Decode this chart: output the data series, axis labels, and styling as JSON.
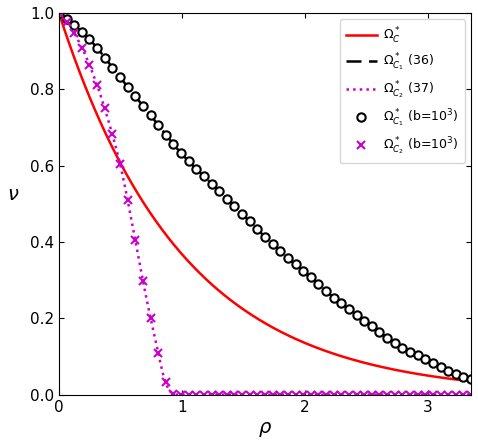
{
  "xlim": [
    0,
    3.35
  ],
  "ylim": [
    0,
    1.0
  ],
  "xlabel": "$\\rho$",
  "ylabel": "$\\nu$",
  "b": 1000,
  "legend_entries": [
    "$\\Omega_C^*$",
    "$\\Omega_{C_1}^*$ (36)",
    "$\\Omega_{C_2}^*$ (37)",
    "$\\Omega_{C_1}^*$ (b=10$^3$)",
    "$\\Omega_{C_2}^*$ (b=10$^3$)"
  ],
  "red": "#ff0000",
  "black": "#000000",
  "magenta": "#cc00cc",
  "n_dense": 400,
  "n_scatter": 55,
  "marker_size": 6,
  "line_width": 1.8,
  "xticks": [
    0,
    1,
    2,
    3
  ],
  "yticks": [
    0,
    0.2,
    0.4,
    0.6,
    0.8,
    1.0
  ],
  "figwidth": 4.78,
  "figheight": 4.46,
  "dpi": 100
}
